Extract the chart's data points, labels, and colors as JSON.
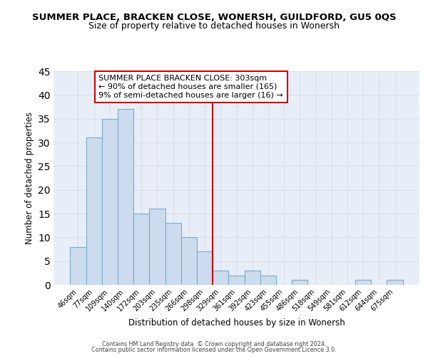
{
  "title": "SUMMER PLACE, BRACKEN CLOSE, WONERSH, GUILDFORD, GU5 0QS",
  "subtitle": "Size of property relative to detached houses in Wonersh",
  "xlabel": "Distribution of detached houses by size in Wonersh",
  "ylabel": "Number of detached properties",
  "bar_labels": [
    "46sqm",
    "77sqm",
    "109sqm",
    "140sqm",
    "172sqm",
    "203sqm",
    "235sqm",
    "266sqm",
    "298sqm",
    "329sqm",
    "361sqm",
    "392sqm",
    "423sqm",
    "455sqm",
    "486sqm",
    "518sqm",
    "549sqm",
    "581sqm",
    "612sqm",
    "644sqm",
    "675sqm"
  ],
  "bar_values": [
    8,
    31,
    35,
    37,
    15,
    16,
    13,
    10,
    7,
    3,
    2,
    3,
    2,
    0,
    1,
    0,
    0,
    0,
    1,
    0,
    1
  ],
  "bar_color": "#ccdcee",
  "bar_edge_color": "#7aaaca",
  "grid_color": "#d8e0ec",
  "background_color": "#e8eef8",
  "vline_color": "#cc0000",
  "annotation_text": "SUMMER PLACE BRACKEN CLOSE: 303sqm\n← 90% of detached houses are smaller (165)\n9% of semi-detached houses are larger (16) →",
  "annotation_box_color": "white",
  "annotation_box_edge": "#cc0000",
  "ylim": [
    0,
    45
  ],
  "yticks": [
    0,
    5,
    10,
    15,
    20,
    25,
    30,
    35,
    40,
    45
  ],
  "footer_line1": "Contains HM Land Registry data  © Crown copyright and database right 2024.",
  "footer_line2": "Contains public sector information licensed under the Open Government Licence 3.0."
}
